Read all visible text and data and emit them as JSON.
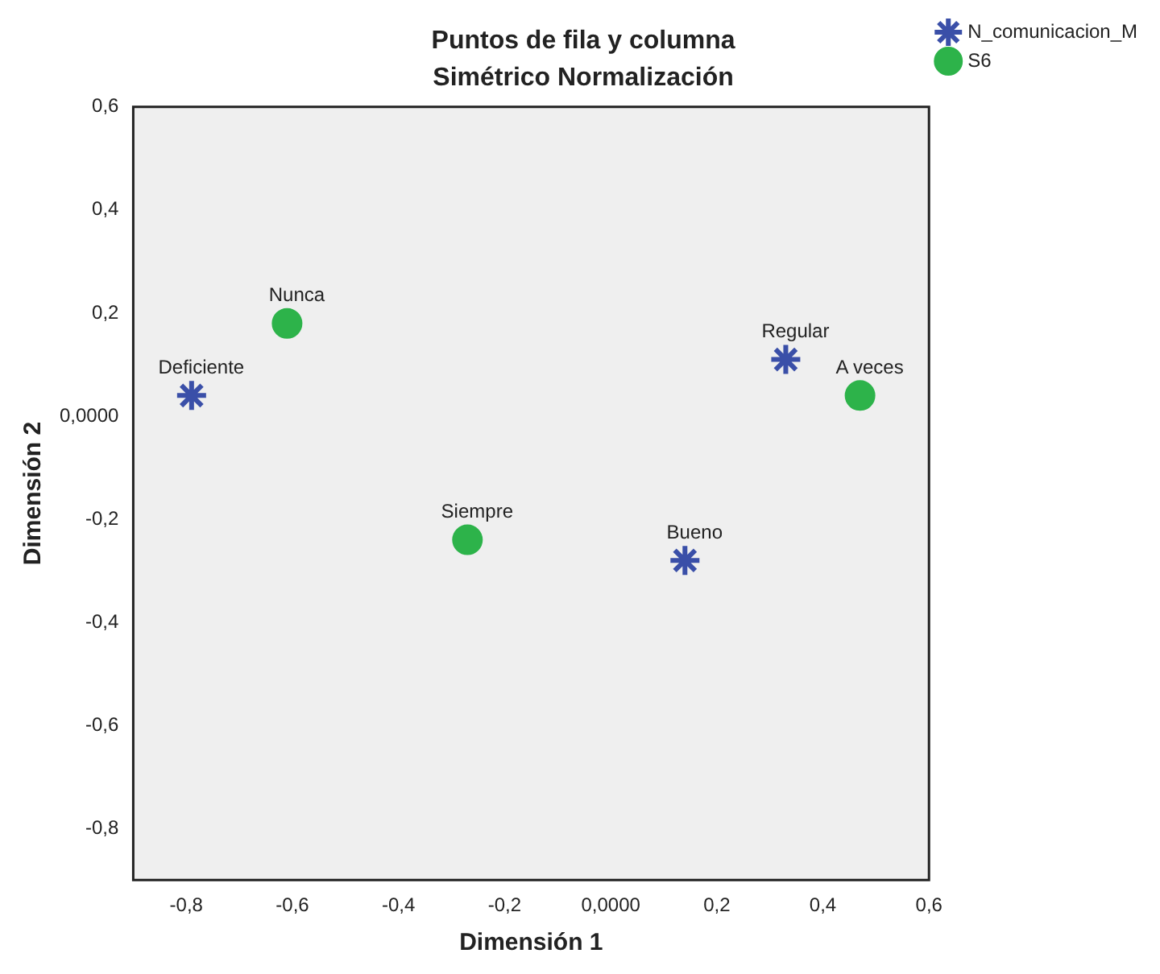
{
  "chart_data": {
    "type": "scatter",
    "title": "Puntos de fila y columna",
    "subtitle": "Simétrico Normalización",
    "xlabel": "Dimensión 1",
    "ylabel": "Dimensión 2",
    "xlim": [
      -0.9,
      0.6
    ],
    "xticks": [
      {
        "value": -0.8,
        "label": "-0,8"
      },
      {
        "value": -0.6,
        "label": "-0,6"
      },
      {
        "value": -0.4,
        "label": "-0,4"
      },
      {
        "value": -0.2,
        "label": "-0,2"
      },
      {
        "value": 0,
        "label": "0,0000"
      },
      {
        "value": 0.2,
        "label": "0,2"
      },
      {
        "value": 0.4,
        "label": "0,4"
      },
      {
        "value": 0.6,
        "label": "0,6"
      }
    ],
    "ylim": [
      -0.9,
      0.6
    ],
    "yticks": [
      {
        "value": -0.8,
        "label": "-0,8"
      },
      {
        "value": -0.6,
        "label": "-0,6"
      },
      {
        "value": -0.4,
        "label": "-0,4"
      },
      {
        "value": -0.2,
        "label": "-0,2"
      },
      {
        "value": 0,
        "label": "0,0000"
      },
      {
        "value": 0.2,
        "label": "0,2"
      },
      {
        "value": 0.4,
        "label": "0,4"
      },
      {
        "value": 0.6,
        "label": "0,6"
      }
    ],
    "grid": false,
    "legend": "top right",
    "series": [
      {
        "name": "N_comunicacion_M",
        "color": "#3a4fa8",
        "marker": "cross",
        "x": [
          -0.79,
          0.33,
          0.14
        ],
        "values": [
          0.04,
          0.11,
          -0.28
        ]
      },
      {
        "name": "S6",
        "color": "#2db34a",
        "marker": "circle",
        "x": [
          -0.61,
          -0.27,
          0.47
        ],
        "values": [
          0.18,
          -0.24,
          0.04
        ]
      }
    ],
    "annotations": [
      {
        "text": "Deficiente",
        "x": -0.79,
        "y": 0.04
      },
      {
        "text": "Regular",
        "x": 0.33,
        "y": 0.11
      },
      {
        "text": "Bueno",
        "x": 0.14,
        "y": -0.28
      },
      {
        "text": "Nunca",
        "x": -0.61,
        "y": 0.18
      },
      {
        "text": "Siempre",
        "x": -0.27,
        "y": -0.24
      },
      {
        "text": "A veces",
        "x": 0.47,
        "y": 0.04
      }
    ]
  }
}
